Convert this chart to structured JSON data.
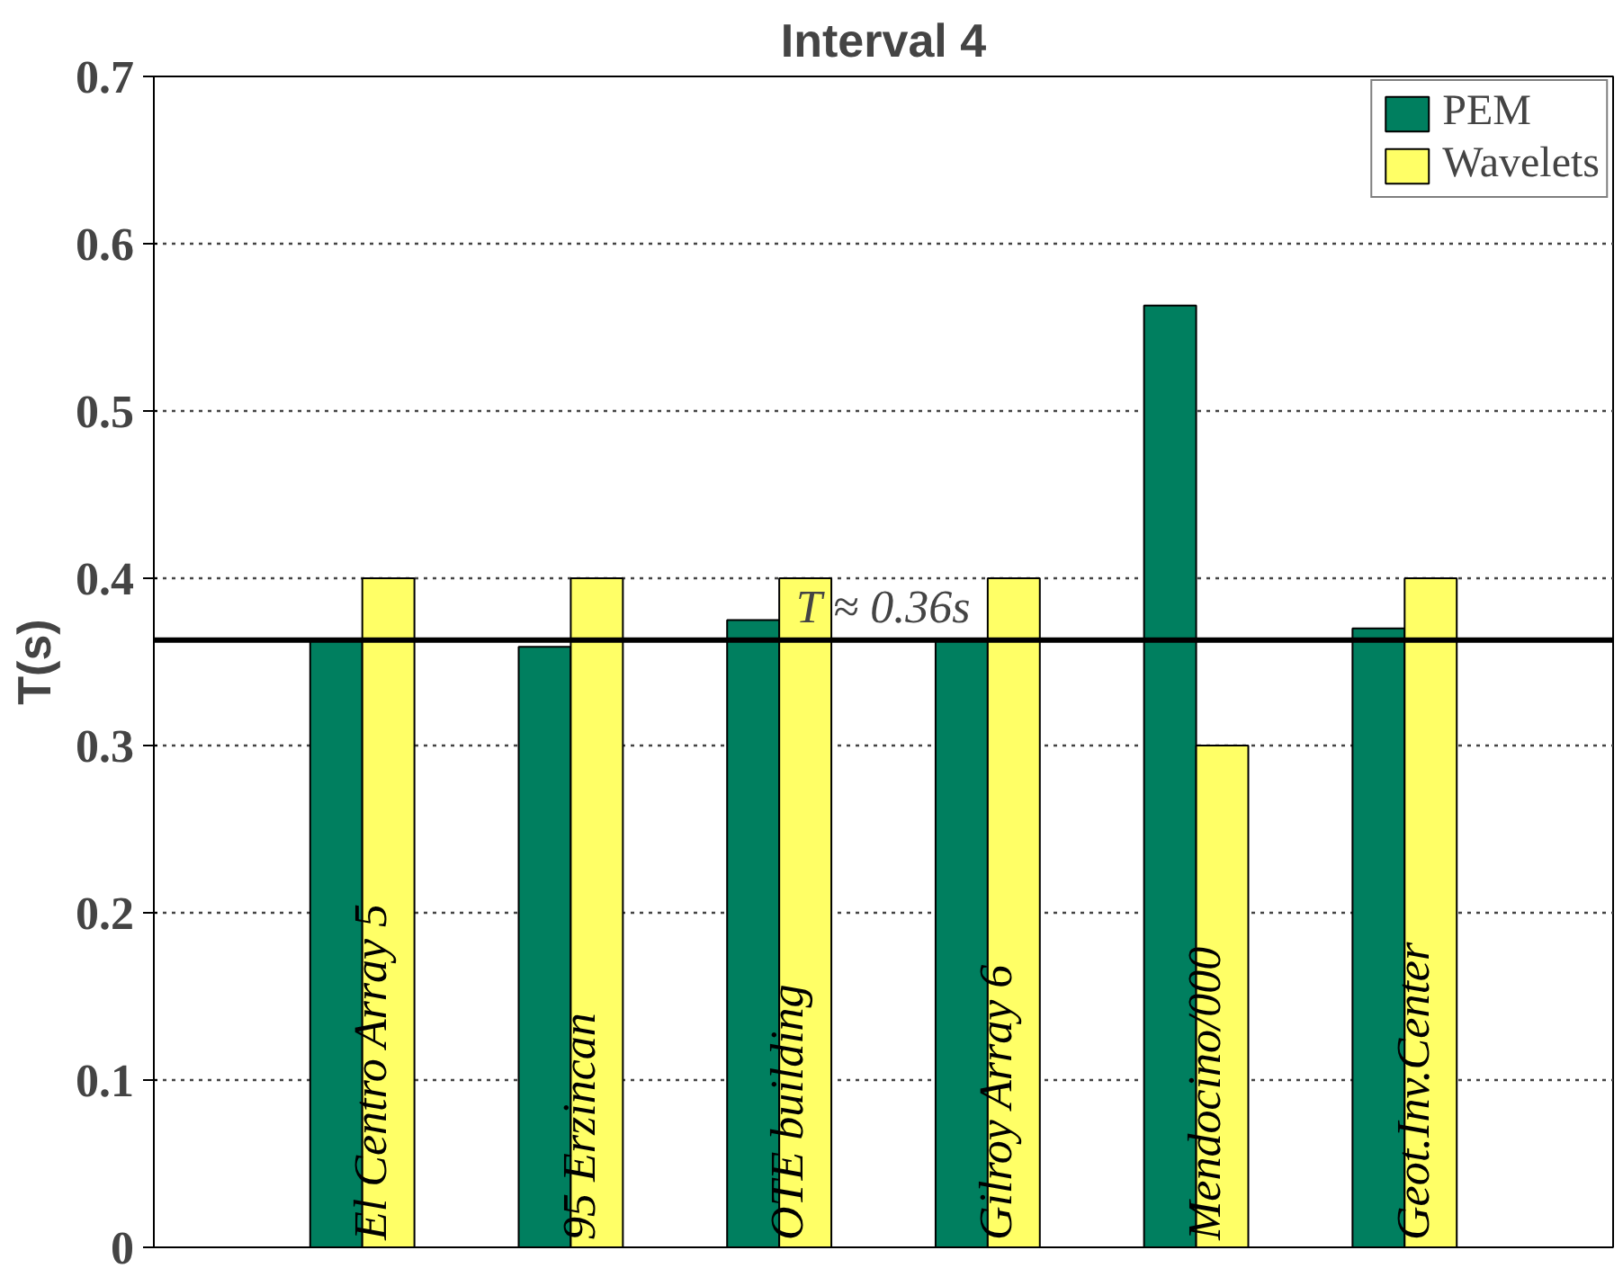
{
  "chart_data": {
    "type": "bar",
    "title": "Interval 4",
    "ylabel": "T(s)",
    "categories": [
      "El Centro Array 5",
      "95 Erzincan",
      "OTE building",
      "Gilroy Array 6",
      "Mendocino/000",
      "Geot.Inv.Center"
    ],
    "series": [
      {
        "name": "PEM",
        "color": "#007f5f",
        "values": [
          0.363,
          0.359,
          0.375,
          0.364,
          0.563,
          0.37
        ]
      },
      {
        "name": "Wavelets",
        "color": "#ffff66",
        "values": [
          0.4,
          0.4,
          0.4,
          0.4,
          0.3,
          0.4
        ]
      }
    ],
    "ylim": [
      0,
      0.7
    ],
    "yticks": [
      0,
      0.1,
      0.2,
      0.3,
      0.4,
      0.5,
      0.6,
      0.7
    ],
    "ref_lines": [
      {
        "axis": "y",
        "value": 0.363,
        "label": "T ≈ 0.36s",
        "color": "#000000"
      }
    ],
    "grid": "y",
    "legend": "top right"
  }
}
